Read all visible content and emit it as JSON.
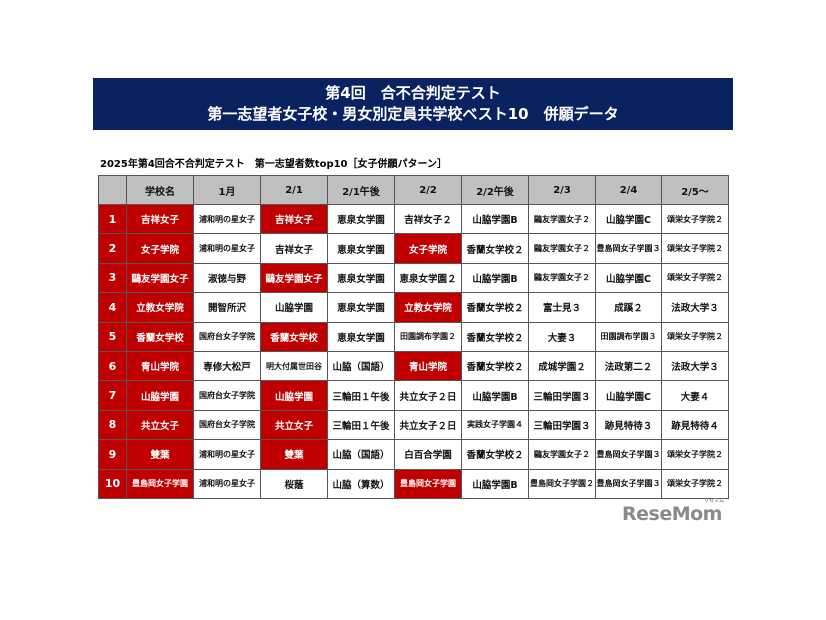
{
  "header": {
    "title_line1": "第4回　合不合判定テスト",
    "title_line2": "第一志望者女子校・男女別定員共学校ベスト10　併願データ"
  },
  "subtitle": "2025年第4回合不合判定テスト　第一志望者数top10［女子併願パターン］",
  "colors": {
    "banner": "#0b2260",
    "highlight": "#c00000",
    "header_bg": "#c0c0c0"
  },
  "table": {
    "columns": [
      "",
      "学校名",
      "1月",
      "2/1",
      "2/1午後",
      "2/2",
      "2/2午後",
      "2/3",
      "2/4",
      "2/5～"
    ],
    "rows": [
      {
        "rank": "1",
        "school": "吉祥女子",
        "cells": [
          [
            "浦和明の星女子",
            false
          ],
          [
            "吉祥女子",
            true
          ],
          [
            "恵泉女学園",
            false
          ],
          [
            "吉祥女子２",
            false
          ],
          [
            "山脇学園B",
            false
          ],
          [
            "鷗友学園女子２",
            false
          ],
          [
            "山脇学園C",
            false
          ],
          [
            "頌栄女子学院２",
            false
          ]
        ]
      },
      {
        "rank": "2",
        "school": "女子学院",
        "cells": [
          [
            "浦和明の星女子",
            false
          ],
          [
            "吉祥女子",
            false
          ],
          [
            "恵泉女学園",
            false
          ],
          [
            "女子学院",
            true
          ],
          [
            "香蘭女学校２",
            false
          ],
          [
            "鷗友学園女子２",
            false
          ],
          [
            "豊島岡女子学園３",
            false
          ],
          [
            "頌栄女子学院２",
            false
          ]
        ]
      },
      {
        "rank": "3",
        "school": "鷗友学園女子",
        "cells": [
          [
            "淑徳与野",
            false
          ],
          [
            "鷗友学園女子",
            true
          ],
          [
            "恵泉女学園",
            false
          ],
          [
            "恵泉女学園２",
            false
          ],
          [
            "山脇学園B",
            false
          ],
          [
            "鷗友学園女子２",
            false
          ],
          [
            "山脇学園C",
            false
          ],
          [
            "頌栄女子学院２",
            false
          ]
        ]
      },
      {
        "rank": "4",
        "school": "立教女学院",
        "cells": [
          [
            "開智所沢",
            false
          ],
          [
            "山脇学園",
            false
          ],
          [
            "恵泉女学園",
            false
          ],
          [
            "立教女学院",
            true
          ],
          [
            "香蘭女学校２",
            false
          ],
          [
            "富士見３",
            false
          ],
          [
            "成蹊２",
            false
          ],
          [
            "法政大学３",
            false
          ]
        ]
      },
      {
        "rank": "5",
        "school": "香蘭女学校",
        "cells": [
          [
            "国府台女子学院",
            false
          ],
          [
            "香蘭女学校",
            true
          ],
          [
            "恵泉女学園",
            false
          ],
          [
            "田園調布学園２",
            false
          ],
          [
            "香蘭女学校２",
            false
          ],
          [
            "大妻３",
            false
          ],
          [
            "田園調布学園３",
            false
          ],
          [
            "頌栄女子学院２",
            false
          ]
        ]
      },
      {
        "rank": "6",
        "school": "青山学院",
        "cells": [
          [
            "専修大松戸",
            false
          ],
          [
            "明大付属世田谷",
            false
          ],
          [
            "山脇（国語）",
            false
          ],
          [
            "青山学院",
            true
          ],
          [
            "香蘭女学校２",
            false
          ],
          [
            "成城学園２",
            false
          ],
          [
            "法政第二２",
            false
          ],
          [
            "法政大学３",
            false
          ]
        ]
      },
      {
        "rank": "7",
        "school": "山脇学園",
        "cells": [
          [
            "国府台女子学院",
            false
          ],
          [
            "山脇学園",
            true
          ],
          [
            "三輪田１午後",
            false
          ],
          [
            "共立女子２日",
            false
          ],
          [
            "山脇学園B",
            false
          ],
          [
            "三輪田学園３",
            false
          ],
          [
            "山脇学園C",
            false
          ],
          [
            "大妻４",
            false
          ]
        ]
      },
      {
        "rank": "8",
        "school": "共立女子",
        "cells": [
          [
            "国府台女子学院",
            false
          ],
          [
            "共立女子",
            true
          ],
          [
            "三輪田１午後",
            false
          ],
          [
            "共立女子２日",
            false
          ],
          [
            "実践女子学園４",
            false
          ],
          [
            "三輪田学園３",
            false
          ],
          [
            "跡見特待３",
            false
          ],
          [
            "跡見特待４",
            false
          ]
        ]
      },
      {
        "rank": "9",
        "school": "雙葉",
        "cells": [
          [
            "浦和明の星女子",
            false
          ],
          [
            "雙葉",
            true
          ],
          [
            "山脇（国語）",
            false
          ],
          [
            "白百合学園",
            false
          ],
          [
            "香蘭女学校２",
            false
          ],
          [
            "鷗友学園女子２",
            false
          ],
          [
            "豊島岡女子学園３",
            false
          ],
          [
            "頌栄女子学院２",
            false
          ]
        ]
      },
      {
        "rank": "10",
        "school": "豊島岡女子学園",
        "cells": [
          [
            "浦和明の星女子",
            false
          ],
          [
            "桜蔭",
            false
          ],
          [
            "山脇（算数）",
            false
          ],
          [
            "豊島岡女子学園",
            true
          ],
          [
            "山脇学園B",
            false
          ],
          [
            "豊島岡女子学園２",
            false
          ],
          [
            "豊島岡女子学園３",
            false
          ],
          [
            "頌栄女子学院２",
            false
          ]
        ]
      }
    ]
  },
  "logo": {
    "text": "ReseMom",
    "kana": "リセマム"
  }
}
